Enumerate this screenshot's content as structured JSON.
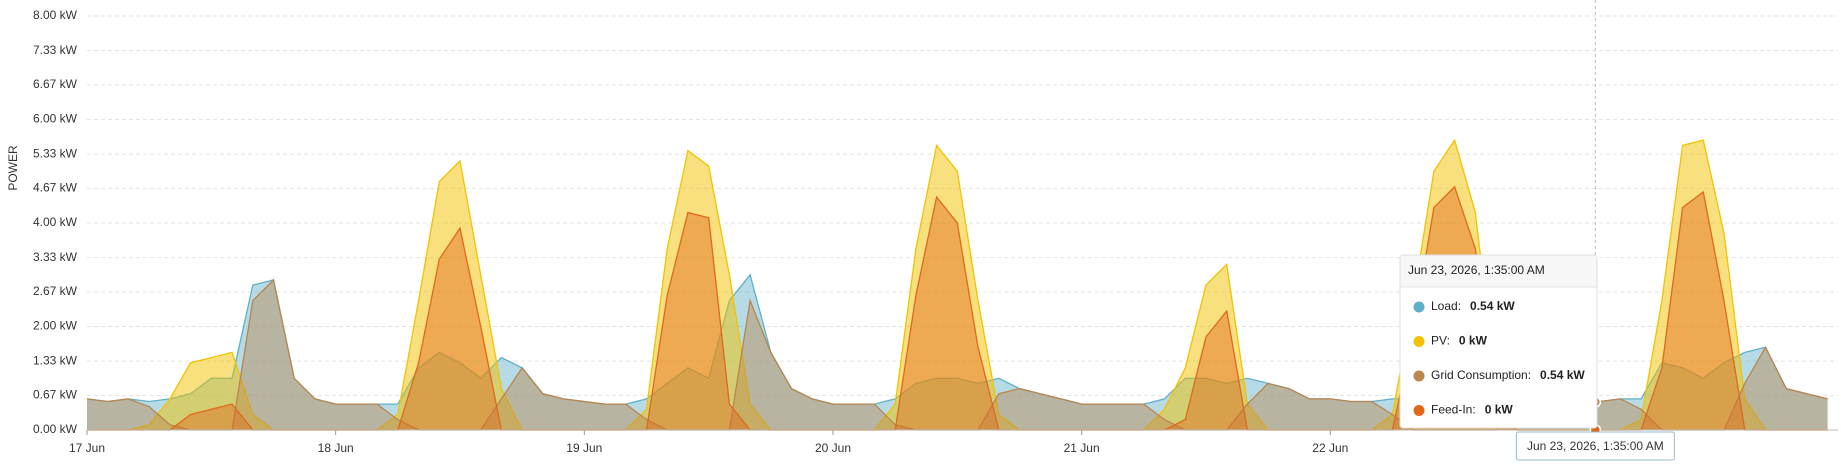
{
  "chart_data": {
    "type": "area",
    "y_label": "POWER",
    "x": [
      0,
      2,
      4,
      6,
      8,
      10,
      12,
      14,
      16,
      18,
      20,
      22,
      24,
      26,
      28,
      30,
      32,
      34,
      36,
      38,
      40,
      42,
      44,
      46,
      48,
      50,
      52,
      54,
      56,
      58,
      60,
      62,
      64,
      66,
      68,
      70,
      72,
      74,
      76,
      78,
      80,
      82,
      84,
      86,
      88,
      90,
      92,
      94,
      96,
      98,
      100,
      102,
      104,
      106,
      108,
      110,
      112,
      114,
      116,
      118,
      120,
      122,
      124,
      126,
      128,
      130,
      132,
      134,
      136,
      138,
      140,
      142,
      144,
      146,
      148,
      150,
      152,
      154,
      156,
      158,
      160,
      162,
      164,
      166,
      168
    ],
    "xlim": [
      0,
      169
    ],
    "xticks": [
      {
        "value": 0,
        "label": "17 Jun"
      },
      {
        "value": 24,
        "label": "18 Jun"
      },
      {
        "value": 48,
        "label": "19 Jun"
      },
      {
        "value": 72,
        "label": "20 Jun"
      },
      {
        "value": 96,
        "label": "21 Jun"
      },
      {
        "value": 120,
        "label": "22 Jun"
      }
    ],
    "ylim": [
      0,
      8
    ],
    "yticks": [
      {
        "value": 0,
        "label": "0.00 kW"
      },
      {
        "value": 0.67,
        "label": "0.67 kW"
      },
      {
        "value": 1.33,
        "label": "1.33 kW"
      },
      {
        "value": 2,
        "label": "2.00 kW"
      },
      {
        "value": 2.67,
        "label": "2.67 kW"
      },
      {
        "value": 3.33,
        "label": "3.33 kW"
      },
      {
        "value": 4,
        "label": "4.00 kW"
      },
      {
        "value": 4.67,
        "label": "4.67 kW"
      },
      {
        "value": 5.33,
        "label": "5.33 kW"
      },
      {
        "value": 6,
        "label": "6.00 kW"
      },
      {
        "value": 6.67,
        "label": "6.67 kW"
      },
      {
        "value": 7.33,
        "label": "7.33 kW"
      },
      {
        "value": 8,
        "label": "8.00 kW"
      }
    ],
    "grid": true,
    "series": [
      {
        "name": "Load",
        "color": "#5fb0c8",
        "values": [
          0.6,
          0.55,
          0.6,
          0.55,
          0.6,
          0.7,
          1.0,
          1.0,
          2.8,
          2.9,
          1.0,
          0.6,
          0.5,
          0.5,
          0.5,
          0.5,
          1.2,
          1.5,
          1.3,
          1.0,
          1.4,
          1.2,
          0.7,
          0.6,
          0.55,
          0.5,
          0.5,
          0.6,
          0.9,
          1.2,
          1.0,
          2.5,
          3.0,
          1.5,
          0.8,
          0.6,
          0.5,
          0.5,
          0.5,
          0.6,
          0.9,
          1.0,
          1.0,
          0.9,
          1.0,
          0.8,
          0.7,
          0.6,
          0.5,
          0.5,
          0.5,
          0.5,
          0.6,
          1.0,
          1.0,
          0.9,
          1.0,
          0.9,
          0.8,
          0.6,
          0.6,
          0.55,
          0.55,
          0.6,
          0.6,
          0.7,
          0.9,
          0.7,
          0.6,
          0.6,
          0.55,
          0.55,
          0.54,
          0.55,
          0.6,
          0.6,
          1.3,
          1.2,
          1.0,
          1.3,
          1.5,
          1.6,
          0.8,
          0.7,
          0.6
        ]
      },
      {
        "name": "PV",
        "color": "#f2c200",
        "values": [
          0,
          0,
          0,
          0.1,
          0.6,
          1.3,
          1.4,
          1.5,
          0.3,
          0,
          0,
          0,
          0,
          0,
          0,
          0.3,
          2.5,
          4.8,
          5.2,
          3.0,
          0.8,
          0,
          0,
          0,
          0,
          0,
          0,
          0.4,
          3.5,
          5.4,
          5.1,
          3.0,
          0.5,
          0,
          0,
          0,
          0,
          0,
          0,
          0.5,
          3.5,
          5.5,
          5.0,
          2.5,
          0.3,
          0,
          0,
          0,
          0,
          0,
          0,
          0,
          0.4,
          1.2,
          2.8,
          3.2,
          0.5,
          0,
          0,
          0,
          0,
          0,
          0,
          0.3,
          2.5,
          5.0,
          5.6,
          4.2,
          0.8,
          0,
          0,
          0,
          0,
          0,
          0,
          0.2,
          2.5,
          5.5,
          5.6,
          3.8,
          0.6,
          0,
          0,
          0,
          0
        ]
      },
      {
        "name": "Grid Consumption",
        "color": "#b8864e",
        "values": [
          0.6,
          0.55,
          0.6,
          0.45,
          0.1,
          0,
          0,
          0,
          2.5,
          2.9,
          1.0,
          0.6,
          0.5,
          0.5,
          0.5,
          0.2,
          0,
          0,
          0,
          0,
          0.6,
          1.2,
          0.7,
          0.6,
          0.55,
          0.5,
          0.5,
          0.2,
          0,
          0,
          0,
          0,
          2.5,
          1.5,
          0.8,
          0.6,
          0.5,
          0.5,
          0.5,
          0.1,
          0,
          0,
          0,
          0,
          0.7,
          0.8,
          0.7,
          0.6,
          0.5,
          0.5,
          0.5,
          0.5,
          0.2,
          0,
          0,
          0,
          0.5,
          0.9,
          0.8,
          0.6,
          0.6,
          0.55,
          0.55,
          0.3,
          0,
          0,
          0,
          0,
          0,
          0.6,
          0.55,
          0.55,
          0.54,
          0.55,
          0.6,
          0.4,
          0,
          0,
          0,
          0,
          0.9,
          1.6,
          0.8,
          0.7,
          0.6
        ]
      },
      {
        "name": "Feed-In",
        "color": "#e0681c",
        "values": [
          0,
          0,
          0,
          0,
          0,
          0.3,
          0.4,
          0.5,
          0,
          0,
          0,
          0,
          0,
          0,
          0,
          0,
          1.3,
          3.3,
          3.9,
          2.0,
          0,
          0,
          0,
          0,
          0,
          0,
          0,
          0,
          2.6,
          4.2,
          4.1,
          0.5,
          0,
          0,
          0,
          0,
          0,
          0,
          0,
          0,
          2.6,
          4.5,
          4.0,
          1.6,
          0,
          0,
          0,
          0,
          0,
          0,
          0,
          0,
          0,
          0.2,
          1.8,
          2.3,
          0,
          0,
          0,
          0,
          0,
          0,
          0,
          0,
          1.9,
          4.3,
          4.7,
          3.5,
          0.2,
          0,
          0,
          0,
          0,
          0,
          0,
          0,
          1.2,
          4.3,
          4.6,
          2.5,
          0,
          0,
          0,
          0,
          0
        ]
      }
    ],
    "tooltip": {
      "title": "Jun 23, 2026, 1:35:00 AM",
      "x": 145.58,
      "items": [
        {
          "name": "Load:",
          "value": 0.54,
          "label": "0.54 kW"
        },
        {
          "name": "PV:",
          "value": 0,
          "label": "0 kW"
        },
        {
          "name": "Grid Consumption:",
          "value": 0.54,
          "label": "0.54 kW"
        },
        {
          "name": "Feed-In:",
          "value": 0,
          "label": "0 kW"
        }
      ]
    }
  }
}
